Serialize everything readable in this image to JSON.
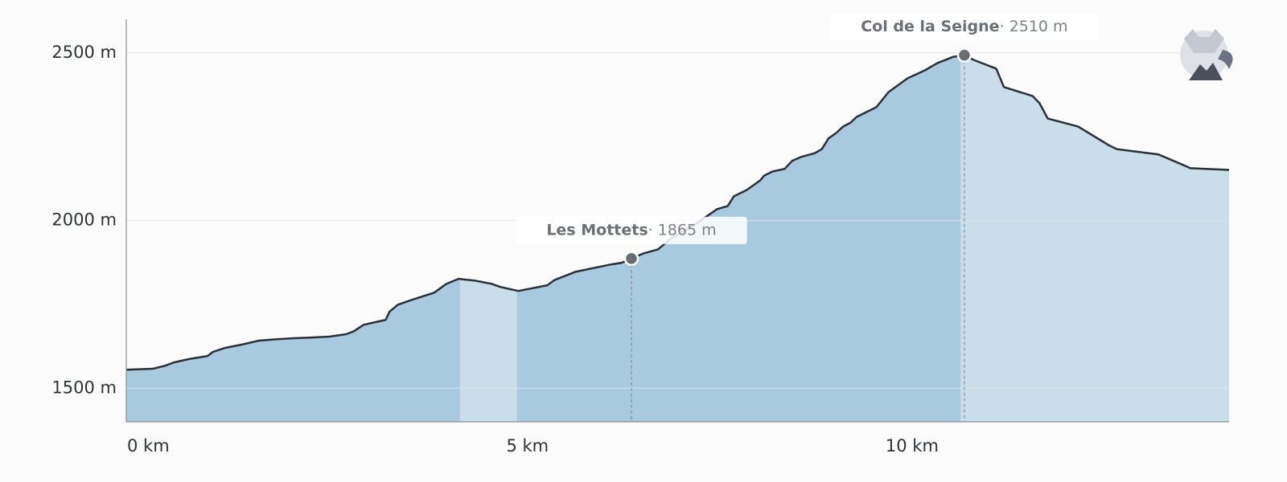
{
  "chart_data": {
    "type": "area",
    "x": [
      0,
      0.35,
      0.51,
      0.63,
      0.83,
      1.07,
      1.14,
      1.3,
      1.52,
      1.75,
      1.99,
      2.21,
      2.42,
      2.68,
      2.9,
      3.0,
      3.13,
      3.42,
      3.47,
      3.58,
      3.8,
      4.06,
      4.22,
      4.38,
      4.59,
      4.82,
      4.93,
      5.17,
      5.55,
      5.65,
      5.92,
      6.39,
      6.53,
      6.82,
      7.01,
      7.19,
      7.45,
      7.67,
      7.79,
      7.93,
      8.01,
      8.18,
      8.36,
      8.41,
      8.52,
      8.68,
      8.78,
      8.89,
      9.08,
      9.17,
      9.26,
      9.36,
      9.45,
      9.55,
      9.63,
      9.89,
      10.05,
      10.3,
      10.53,
      10.69,
      10.9,
      11.05,
      11.17,
      11.47,
      11.57,
      11.95,
      12.04,
      12.15,
      12.55,
      12.74,
      12.95,
      13.06,
      13.61,
      13.93,
      14.03,
      14.24,
      14.54
    ],
    "series": [
      {
        "color": "#2b3038",
        "values": [
          1555,
          1558,
          1567,
          1577,
          1587,
          1596,
          1608,
          1620,
          1630,
          1642,
          1646,
          1649,
          1651,
          1654,
          1661,
          1670,
          1689,
          1704,
          1728,
          1749,
          1766,
          1785,
          1811,
          1826,
          1821,
          1811,
          1802,
          1790,
          1807,
          1823,
          1847,
          1869,
          1874,
          1902,
          1914,
          1948,
          1981,
          2015,
          2034,
          2043,
          2072,
          2091,
          2120,
          2134,
          2146,
          2154,
          2178,
          2189,
          2201,
          2213,
          2245,
          2261,
          2280,
          2292,
          2309,
          2338,
          2383,
          2424,
          2448,
          2469,
          2488,
          2493,
          2479,
          2453,
          2398,
          2371,
          2350,
          2304,
          2280,
          2254,
          2225,
          2213,
          2197,
          2166,
          2156,
          2154,
          2151
        ]
      }
    ],
    "fill_color": "#c9dee9",
    "highlight_color": "#a8cade",
    "highlight_ranges": [
      [
        0,
        4.4
      ],
      [
        5.15,
        11.0
      ]
    ],
    "xlim": [
      0,
      14.54
    ],
    "ylim": [
      1400,
      2600
    ],
    "xticks": [
      {
        "value": 0,
        "label": "0 km"
      },
      {
        "value": 5,
        "label": "5 km"
      },
      {
        "value": 10,
        "label": "10 km"
      }
    ],
    "yticks": [
      {
        "value": 1500,
        "label": "1500 m"
      },
      {
        "value": 2000,
        "label": "2000 m"
      },
      {
        "value": 2500,
        "label": "2500 m"
      }
    ],
    "grid": true,
    "annotations": [
      {
        "name": "Les Mottets",
        "x": 6.66,
        "value": 1865,
        "value_label": "· 1865 m"
      },
      {
        "name": "Col de la Seigne",
        "x": 11.05,
        "value": 2510,
        "value_label": "· 2510 m"
      }
    ]
  }
}
